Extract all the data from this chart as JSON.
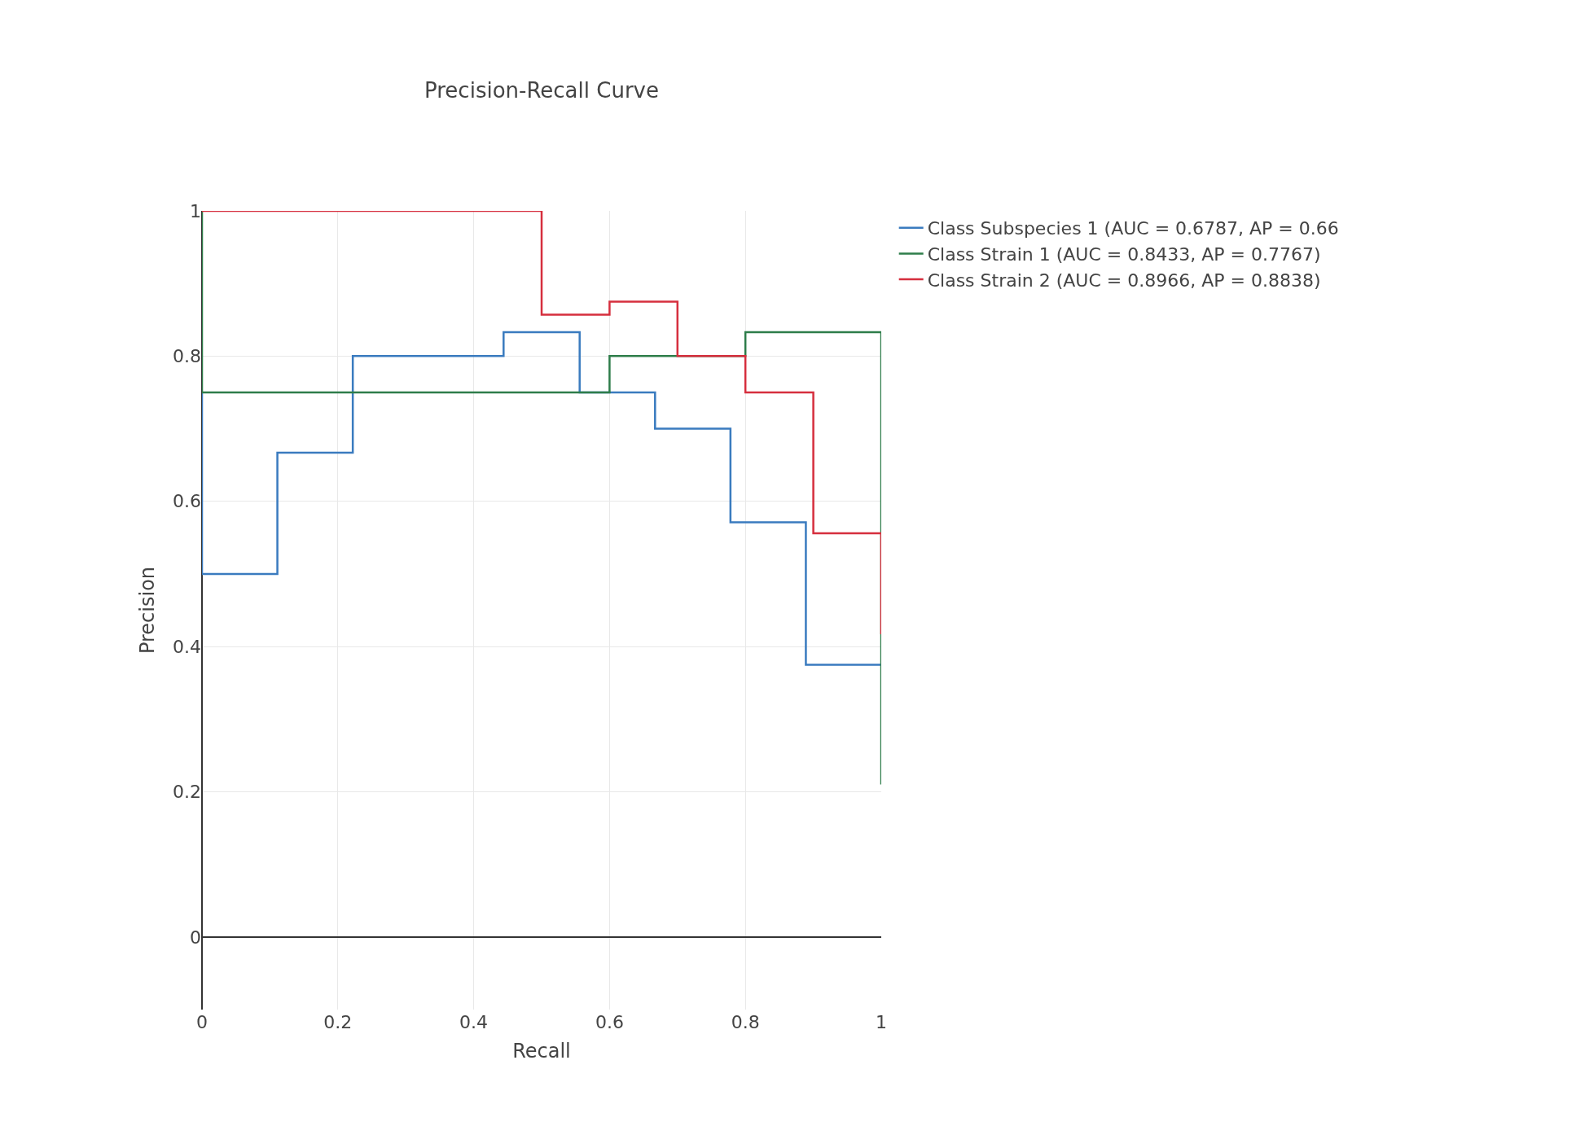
{
  "chart_data": {
    "type": "step",
    "title": "Precision-Recall Curve",
    "xlabel": "Recall",
    "ylabel": "Precision",
    "series": [
      {
        "name": "Class Subspecies 1 (AUC = 0.6787, AP = 0.66",
        "color": "#3a7bbf",
        "x": [
          0,
          0,
          0.111,
          0.222,
          0.444,
          0.556,
          0.667,
          0.778,
          0.889,
          1
        ],
        "values": [
          0.75,
          0.5,
          0.667,
          0.8,
          0.833,
          0.75,
          0.7,
          0.571,
          0.375,
          0.375
        ]
      },
      {
        "name": "Class Strain 1 (AUC = 0.8433, AP = 0.7767)",
        "color": "#2e7d4a",
        "x": [
          0,
          0,
          0.6,
          0.8,
          1,
          1
        ],
        "values": [
          1,
          0.75,
          0.8,
          0.833,
          0.833,
          0.21
        ]
      },
      {
        "name": "Class Strain 2 (AUC = 0.8966, AP = 0.8838)",
        "color": "#d62f3e",
        "x": [
          0,
          0.5,
          0.6,
          0.7,
          0.8,
          0.9,
          1,
          1
        ],
        "values": [
          1,
          0.857,
          0.875,
          0.8,
          0.75,
          0.556,
          0.556,
          0.417
        ]
      }
    ],
    "xlim": [
      0,
      1
    ],
    "ylim": [
      -0.1,
      1
    ],
    "xticks": [
      0,
      0.2,
      0.4,
      0.6,
      0.8,
      1
    ],
    "yticks": [
      0,
      0.2,
      0.4,
      0.6,
      0.8,
      1
    ],
    "grid": true,
    "legend": "top right",
    "line_style": "solid",
    "marker": "none"
  }
}
